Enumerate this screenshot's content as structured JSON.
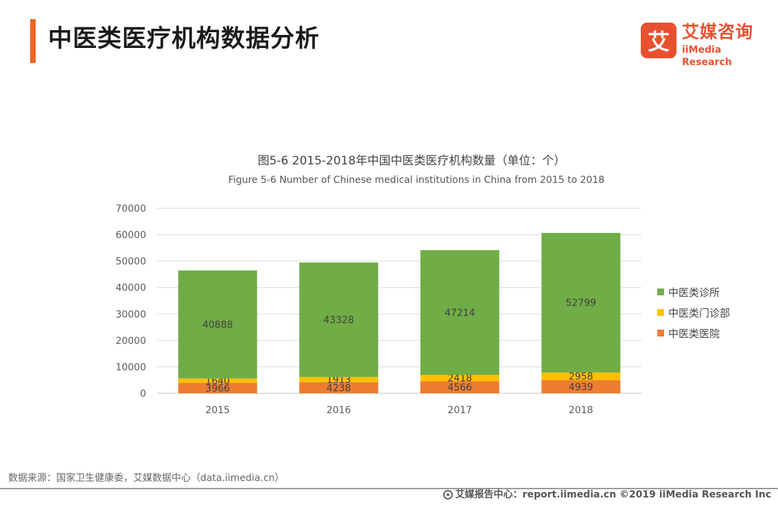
{
  "header": {
    "title": "中医类医疗机构数据分析",
    "accent_color": "#f26522"
  },
  "logo": {
    "glyph": "艾",
    "name_cn": "艾媒咨询",
    "name_en": "iiMedia Research",
    "color": "#e8512f"
  },
  "chart_data": {
    "type": "bar",
    "stacked": true,
    "title": "图5-6 2015-2018年中国中医类医疗机构数量（单位：个）",
    "subtitle": "Figure 5-6 Number of Chinese medical institutions in China from 2015 to 2018",
    "categories": [
      "2015",
      "2016",
      "2017",
      "2018"
    ],
    "series": [
      {
        "name": "中医类医院",
        "values": [
          3966,
          4238,
          4566,
          4939
        ],
        "color": "#ed7d31"
      },
      {
        "name": "中医类门诊部",
        "values": [
          1640,
          1913,
          2418,
          2958
        ],
        "color": "#ffc000"
      },
      {
        "name": "中医类诊所",
        "values": [
          40888,
          43328,
          47214,
          52799
        ],
        "color": "#70ad47"
      }
    ],
    "ylim": [
      0,
      70000
    ],
    "yticks": [
      "0",
      "10000",
      "20000",
      "30000",
      "40000",
      "50000",
      "60000",
      "70000"
    ],
    "grid": true,
    "legend_position": "right"
  },
  "legend": [
    {
      "label": "中医类诊所",
      "color": "#70ad47"
    },
    {
      "label": "中医类门诊部",
      "color": "#ffc000"
    },
    {
      "label": "中医类医院",
      "color": "#ed7d31"
    }
  ],
  "source": "数据来源：国家卫生健康委，艾媒数据中心（data.iimedia.cn）",
  "footer": "艾媒报告中心：report.iimedia.cn  ©2019  iiMedia Research  Inc"
}
